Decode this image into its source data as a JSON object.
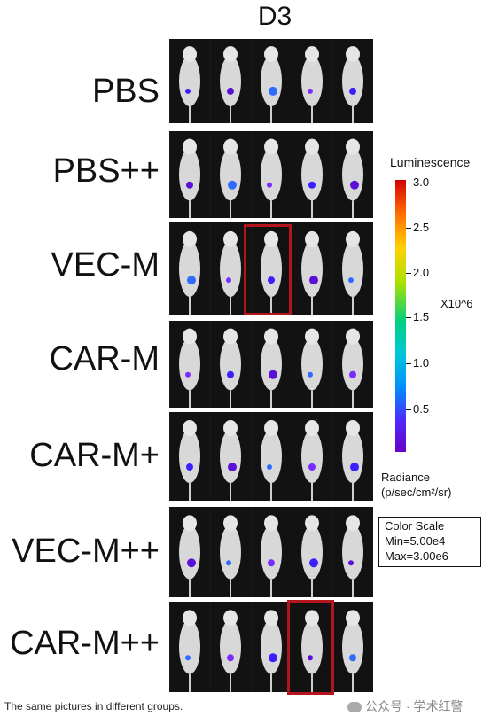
{
  "title": "D3",
  "groups": [
    {
      "label": "PBS"
    },
    {
      "label": "PBS++"
    },
    {
      "label": "VEC-M"
    },
    {
      "label": "CAR-M"
    },
    {
      "label": "CAR-M+"
    },
    {
      "label": "VEC-M++"
    },
    {
      "label": "CAR-M++"
    }
  ],
  "legend": {
    "title": "Luminescence",
    "ticks": [
      "3.0",
      "2.5",
      "2.0",
      "1.5",
      "1.0",
      "0.5"
    ],
    "unit": "X10^6",
    "radiance_line1": "Radiance",
    "radiance_line2": "(p/sec/cm²/sr)",
    "scale_title": "Color Scale",
    "scale_min": "Min=5.00e4",
    "scale_max": "Max=3.00e6"
  },
  "caption": "The same pictures in different groups.",
  "watermark": "公众号 · 学术红警",
  "colors": {
    "highlight": "#b4141c",
    "panel_bg": "#1a1a1a"
  }
}
